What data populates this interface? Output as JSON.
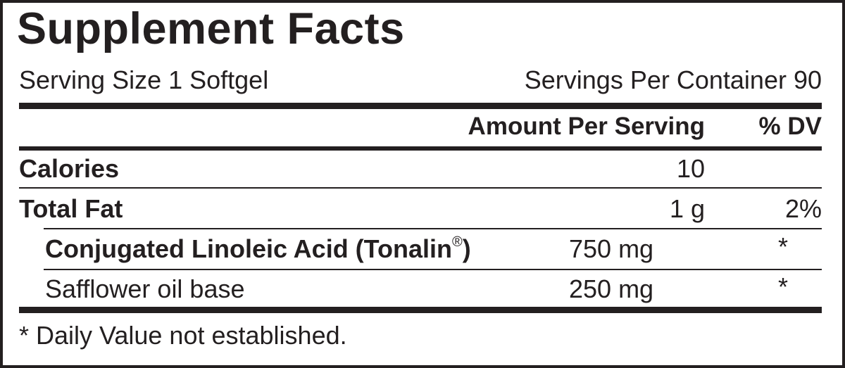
{
  "title": "Supplement Facts",
  "serving_size": "Serving Size 1 Softgel",
  "servings_per_container": "Servings Per Container 90",
  "header": {
    "amount": "Amount Per Serving",
    "dv": "% DV"
  },
  "rows": [
    {
      "name": "Calories",
      "amount": "10",
      "dv": ""
    },
    {
      "name": "Total Fat",
      "amount": "1 g",
      "dv": "2%"
    },
    {
      "name": "Conjugated Linoleic Acid (Tonalin",
      "name_mark": "®",
      "name_end": ")",
      "amount": "750 mg",
      "dv": "*"
    },
    {
      "name": "Safflower oil base",
      "amount": "250 mg",
      "dv": "*"
    }
  ],
  "footnote": "* Daily Value not established."
}
